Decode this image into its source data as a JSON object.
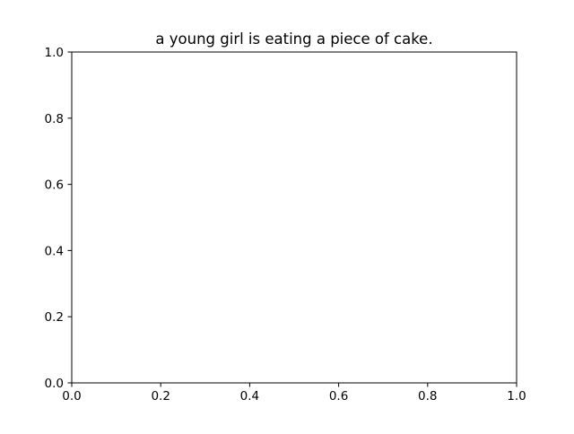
{
  "chart_data": {
    "type": "line",
    "title": "a young girl is eating a piece of cake.",
    "xlabel": "",
    "ylabel": "",
    "xlim": [
      0.0,
      1.0
    ],
    "ylim": [
      0.0,
      1.0
    ],
    "xticks": [
      "0.0",
      "0.2",
      "0.4",
      "0.6",
      "0.8",
      "1.0"
    ],
    "yticks": [
      "0.0",
      "0.2",
      "0.4",
      "0.6",
      "0.8",
      "1.0"
    ],
    "series": [],
    "grid": false,
    "legend": "none"
  }
}
